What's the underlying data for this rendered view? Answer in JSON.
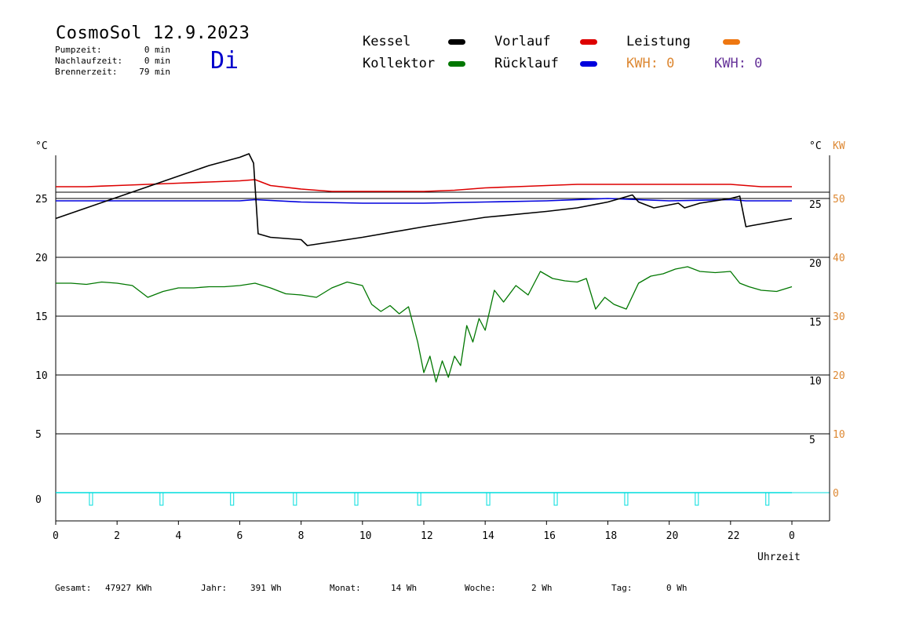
{
  "header": {
    "title": "CosmoSol 12.9.2023",
    "weekday": "Di",
    "stats": [
      {
        "label": "Pumpzeit:",
        "value": "0 min"
      },
      {
        "label": "Nachlaufzeit:",
        "value": "0 min"
      },
      {
        "label": "Brennerzeit:",
        "value": "79 min"
      }
    ]
  },
  "legend": {
    "kessel": {
      "label": "Kessel",
      "color": "#000000"
    },
    "vorlauf": {
      "label": "Vorlauf",
      "color": "#dd0000"
    },
    "leistung": {
      "label": "Leistung",
      "color": "#ee7711"
    },
    "kollektor": {
      "label": "Kollektor",
      "color": "#007700"
    },
    "ruecklauf": {
      "label": "Rücklauf",
      "color": "#0000dd"
    },
    "kwh1": {
      "label": "KWH: 0",
      "color": "#dd8833"
    },
    "kwh2": {
      "label": "KWH: 0",
      "color": "#663399"
    }
  },
  "footer": [
    {
      "label": "Gesamt:",
      "value": "47927 KWh"
    },
    {
      "label": "Jahr:",
      "value": "391 Wh"
    },
    {
      "label": "Monat:",
      "value": "14 Wh"
    },
    {
      "label": "Woche:",
      "value": "2 Wh"
    },
    {
      "label": "Tag:",
      "value": "0 Wh"
    }
  ],
  "chart_data": {
    "type": "line",
    "xlabel": "Uhrzeit",
    "x_ticks": [
      "0",
      "2",
      "4",
      "6",
      "8",
      "10",
      "12",
      "14",
      "16",
      "18",
      "20",
      "22",
      "0"
    ],
    "xlim": [
      0,
      24
    ],
    "y_left_label": "°C",
    "y_left_ticks": [
      "0",
      "5",
      "10",
      "15",
      "20",
      "25"
    ],
    "y_right_label": "°C",
    "y_right_ticks": [
      "5",
      "10",
      "15",
      "20",
      "25"
    ],
    "y_kw_label": "KW",
    "y_kw_ticks": [
      "0",
      "10",
      "20",
      "30",
      "40",
      "50"
    ],
    "ylim": [
      -2.3,
      29
    ],
    "grid": "horizontal",
    "series": [
      {
        "name": "Vorlauf",
        "color": "#dd0000",
        "x": [
          0,
          1,
          2,
          3,
          4,
          5,
          6,
          6.5,
          7,
          8,
          9,
          10,
          11,
          12,
          13,
          14,
          15,
          16,
          17,
          18,
          19,
          20,
          21,
          22,
          22.5,
          23,
          24
        ],
        "y": [
          26.0,
          26.0,
          26.1,
          26.2,
          26.3,
          26.4,
          26.5,
          26.6,
          26.1,
          25.8,
          25.6,
          25.6,
          25.6,
          25.6,
          25.7,
          25.9,
          26.0,
          26.1,
          26.2,
          26.2,
          26.2,
          26.2,
          26.2,
          26.2,
          26.1,
          26.0,
          26.0
        ]
      },
      {
        "name": "Rücklauf",
        "color": "#0000dd",
        "x": [
          0,
          2,
          4,
          6,
          6.5,
          8,
          10,
          12,
          14,
          16,
          18,
          19,
          20,
          22,
          22.5,
          24
        ],
        "y": [
          24.8,
          24.8,
          24.8,
          24.8,
          24.9,
          24.7,
          24.6,
          24.6,
          24.7,
          24.8,
          25.0,
          24.9,
          24.8,
          24.9,
          24.8,
          24.8
        ]
      },
      {
        "name": "Kessel",
        "color": "#000000",
        "x": [
          0,
          1,
          2,
          3,
          4,
          5,
          6,
          6.3,
          6.45,
          6.6,
          7,
          8,
          8.2,
          10,
          12,
          14,
          16,
          17,
          18,
          18.8,
          19.0,
          19.5,
          20.3,
          20.5,
          21,
          22,
          22.3,
          22.5,
          22.7,
          24
        ],
        "y": [
          23.3,
          24.2,
          25.1,
          26.0,
          26.9,
          27.8,
          28.5,
          28.8,
          28.0,
          22.0,
          21.7,
          21.5,
          21.0,
          21.7,
          22.6,
          23.4,
          23.9,
          24.2,
          24.7,
          25.3,
          24.7,
          24.2,
          24.6,
          24.2,
          24.6,
          25.0,
          25.2,
          22.6,
          22.7,
          23.3
        ]
      },
      {
        "name": "Kollektor",
        "color": "#007700",
        "x": [
          0,
          0.5,
          1,
          1.5,
          2,
          2.5,
          3,
          3.5,
          4,
          4.5,
          5,
          5.5,
          6,
          6.5,
          7,
          7.5,
          8,
          8.5,
          9,
          9.5,
          10,
          10.3,
          10.6,
          10.9,
          11.2,
          11.5,
          11.8,
          12.0,
          12.2,
          12.4,
          12.6,
          12.8,
          13.0,
          13.2,
          13.4,
          13.6,
          13.8,
          14.0,
          14.3,
          14.6,
          15.0,
          15.4,
          15.8,
          16.2,
          16.6,
          17.0,
          17.3,
          17.6,
          17.9,
          18.2,
          18.6,
          19.0,
          19.4,
          19.8,
          20.2,
          20.6,
          21.0,
          21.5,
          22.0,
          22.3,
          22.6,
          23.0,
          23.5,
          24
        ],
        "y": [
          17.8,
          17.8,
          17.7,
          17.9,
          17.8,
          17.6,
          16.6,
          17.1,
          17.4,
          17.4,
          17.5,
          17.5,
          17.6,
          17.8,
          17.4,
          16.9,
          16.8,
          16.6,
          17.4,
          17.9,
          17.6,
          16.0,
          15.4,
          15.9,
          15.2,
          15.8,
          12.8,
          10.2,
          11.6,
          9.4,
          11.2,
          9.8,
          11.6,
          10.8,
          14.2,
          12.8,
          14.8,
          13.8,
          17.2,
          16.2,
          17.6,
          16.8,
          18.8,
          18.2,
          18.0,
          17.9,
          18.2,
          15.6,
          16.6,
          16.0,
          15.6,
          17.8,
          18.4,
          18.6,
          19.0,
          19.2,
          18.8,
          18.7,
          18.8,
          17.8,
          17.5,
          17.2,
          17.1,
          17.5
        ]
      },
      {
        "name": "Leistung",
        "color": "#00dddd",
        "x": [
          0,
          24
        ],
        "y": [
          0,
          0
        ]
      }
    ]
  }
}
